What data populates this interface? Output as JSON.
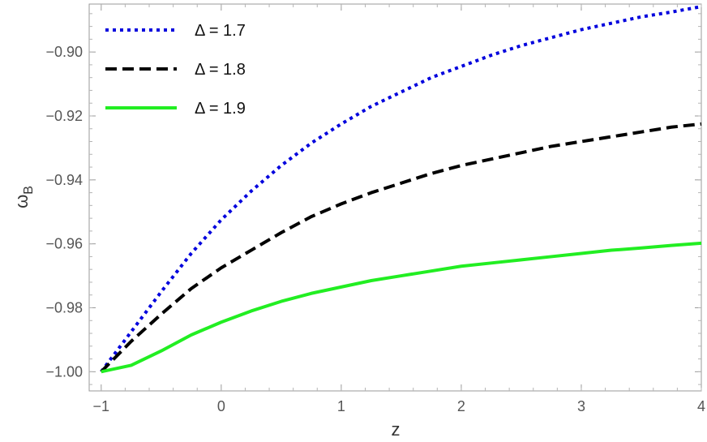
{
  "chart_data": {
    "type": "line",
    "xlabel": "z",
    "ylabel": "ω",
    "ylabel_sub": "B",
    "xlim": [
      -1.1,
      4
    ],
    "ylim": [
      -1.006,
      -0.885
    ],
    "x_ticks": [
      -1,
      0,
      1,
      2,
      3,
      4
    ],
    "x_tick_labels": [
      "-1",
      "0",
      "1",
      "2",
      "3",
      "4"
    ],
    "y_ticks": [
      -1.0,
      -0.98,
      -0.96,
      -0.94,
      -0.92,
      -0.9
    ],
    "y_tick_labels": [
      "-1.00",
      "-0.98",
      "-0.96",
      "-0.94",
      "-0.92",
      "-0.90"
    ],
    "grid": false,
    "legend_position": "top-left",
    "series": [
      {
        "name": "Δ = 1.7",
        "color": "#0000dd",
        "style": "dotted",
        "x": [
          -1,
          -0.75,
          -0.5,
          -0.25,
          0,
          0.25,
          0.5,
          0.75,
          1,
          1.25,
          1.5,
          1.75,
          2,
          2.25,
          2.5,
          2.75,
          3,
          3.25,
          3.5,
          3.75,
          4
        ],
        "y": [
          -1.0,
          -0.9875,
          -0.975,
          -0.963,
          -0.9525,
          -0.9435,
          -0.9355,
          -0.9285,
          -0.9225,
          -0.917,
          -0.9125,
          -0.908,
          -0.9045,
          -0.901,
          -0.898,
          -0.8955,
          -0.893,
          -0.891,
          -0.889,
          -0.8875,
          -0.8858
        ]
      },
      {
        "name": "Δ = 1.8",
        "color": "#000000",
        "style": "dashed",
        "x": [
          -1,
          -0.75,
          -0.5,
          -0.25,
          0,
          0.25,
          0.5,
          0.75,
          1,
          1.25,
          1.5,
          1.75,
          2,
          2.25,
          2.5,
          2.75,
          3,
          3.25,
          3.5,
          3.75,
          4
        ],
        "y": [
          -1.0,
          -0.9905,
          -0.982,
          -0.974,
          -0.9675,
          -0.962,
          -0.9565,
          -0.9515,
          -0.9475,
          -0.944,
          -0.941,
          -0.938,
          -0.9355,
          -0.9335,
          -0.9315,
          -0.9295,
          -0.928,
          -0.9265,
          -0.925,
          -0.9235,
          -0.9225
        ]
      },
      {
        "name": "Δ = 1.9",
        "color": "#22ee22",
        "style": "solid",
        "x": [
          -1,
          -0.75,
          -0.5,
          -0.25,
          0,
          0.25,
          0.5,
          0.75,
          1,
          1.25,
          1.5,
          1.75,
          2,
          2.25,
          2.5,
          2.75,
          3,
          3.25,
          3.5,
          3.75,
          4
        ],
        "y": [
          -1.0,
          -0.998,
          -0.9935,
          -0.9885,
          -0.9845,
          -0.981,
          -0.978,
          -0.9755,
          -0.9735,
          -0.9715,
          -0.97,
          -0.9685,
          -0.967,
          -0.966,
          -0.965,
          -0.964,
          -0.963,
          -0.962,
          -0.9613,
          -0.9605,
          -0.9598
        ]
      }
    ]
  }
}
